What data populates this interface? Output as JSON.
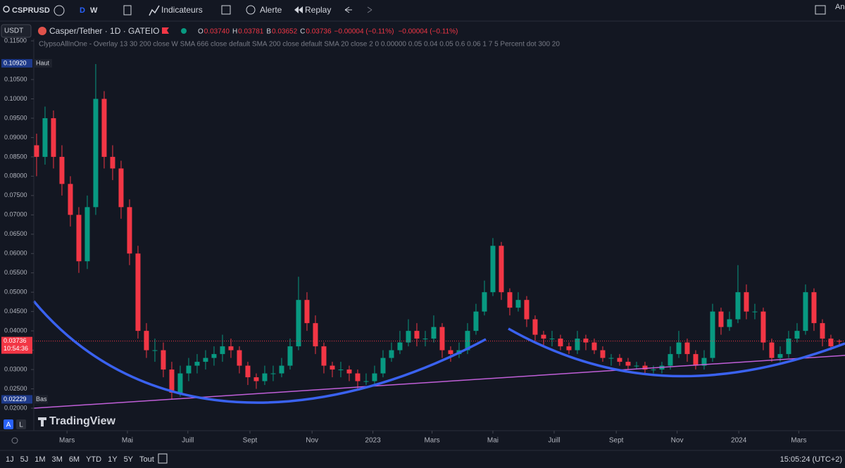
{
  "toolbar": {
    "symbol": "CSPRUSD",
    "intervals": [
      "D",
      "W"
    ],
    "indicators": "Indicateurs",
    "alert": "Alerte",
    "replay": "Replay",
    "account": "An"
  },
  "legend": {
    "currency": "USDT",
    "title": "Casper/Tether · 1D · GATEIO",
    "ohlc": [
      {
        "key": "O",
        "value": "0.03740"
      },
      {
        "key": "H",
        "value": "0.03781"
      },
      {
        "key": "B",
        "value": "0.03652"
      },
      {
        "key": "C",
        "value": "0.03736"
      }
    ],
    "change": "−0.00004 (−0.11%)",
    "change2": "−0.00004 (−0.11%)",
    "indicator": "ClypsoAllInOne - Overlay 13 30 200 close W SMA 666 close default SMA 200 close default SMA 20 close 2 0 0.00000 0.05 0.04 0.05 0.6 0.06 1 7 5 Percent dot 300 20"
  },
  "chart_data": {
    "type": "candlestick",
    "categories": [
      null,
      null,
      null,
      null,
      null,
      null,
      null,
      null,
      null,
      null,
      null,
      null,
      null,
      null,
      null,
      null,
      null,
      null,
      null,
      null,
      null,
      null,
      null,
      null,
      null,
      null,
      null,
      null,
      null,
      null,
      null,
      null,
      null,
      null,
      null,
      null,
      null,
      null,
      null,
      null,
      null,
      null,
      null,
      null,
      null,
      null,
      null,
      null,
      null,
      null,
      null,
      null,
      null,
      null,
      null,
      null,
      null,
      null,
      null,
      null,
      null,
      null,
      null,
      null,
      null,
      null,
      null,
      null,
      null,
      null,
      null,
      null,
      null,
      null,
      null,
      null,
      null,
      null,
      null,
      null,
      null,
      null,
      null,
      null,
      null,
      null,
      null,
      null,
      null,
      null,
      null,
      null,
      null,
      null,
      null,
      null
    ],
    "open": [
      0.088,
      0.085,
      0.095,
      0.085,
      0.078,
      0.07,
      0.058,
      0.072,
      0.1,
      0.085,
      0.082,
      0.072,
      0.06,
      0.04,
      0.035,
      0.035,
      0.03,
      0.024,
      0.029,
      0.031,
      0.032,
      0.033,
      0.034,
      0.036,
      0.035,
      0.031,
      0.028,
      0.027,
      0.029,
      0.029,
      0.031,
      0.036,
      0.048,
      0.042,
      0.036,
      0.031,
      0.03,
      0.03,
      0.029,
      0.027,
      0.027,
      0.029,
      0.033,
      0.035,
      0.037,
      0.04,
      0.038,
      0.038,
      0.041,
      0.035,
      0.034,
      0.035,
      0.04,
      0.045,
      0.05,
      0.062,
      0.05,
      0.046,
      0.048,
      0.043,
      0.039,
      0.038,
      0.038,
      0.036,
      0.035,
      0.038,
      0.037,
      0.035,
      0.033,
      0.033,
      0.032,
      0.031,
      0.031,
      0.03,
      0.03,
      0.031,
      0.034,
      0.037,
      0.034,
      0.031,
      0.033,
      0.045,
      0.041,
      0.043,
      0.05,
      0.045,
      0.045,
      0.037,
      0.033,
      0.034,
      0.038,
      0.04,
      0.05,
      0.042,
      0.038,
      0.0374
    ],
    "high": [
      0.091,
      0.098,
      0.097,
      0.088,
      0.08,
      0.072,
      0.075,
      0.109,
      0.102,
      0.088,
      0.084,
      0.074,
      0.062,
      0.042,
      0.038,
      0.037,
      0.032,
      0.031,
      0.033,
      0.034,
      0.035,
      0.036,
      0.039,
      0.038,
      0.036,
      0.032,
      0.029,
      0.031,
      0.031,
      0.033,
      0.038,
      0.054,
      0.05,
      0.044,
      0.037,
      0.032,
      0.032,
      0.031,
      0.03,
      0.029,
      0.031,
      0.035,
      0.037,
      0.04,
      0.043,
      0.042,
      0.04,
      0.044,
      0.042,
      0.036,
      0.037,
      0.042,
      0.047,
      0.053,
      0.064,
      0.063,
      0.051,
      0.05,
      0.049,
      0.044,
      0.04,
      0.04,
      0.039,
      0.037,
      0.04,
      0.039,
      0.038,
      0.036,
      0.034,
      0.034,
      0.033,
      0.032,
      0.032,
      0.031,
      0.032,
      0.036,
      0.04,
      0.038,
      0.035,
      0.035,
      0.047,
      0.046,
      0.045,
      0.057,
      0.052,
      0.047,
      0.046,
      0.038,
      0.036,
      0.04,
      0.042,
      0.052,
      0.051,
      0.043,
      0.039,
      0.03781
    ],
    "low": [
      0.08,
      0.083,
      0.082,
      0.075,
      0.067,
      0.055,
      0.056,
      0.07,
      0.082,
      0.079,
      0.069,
      0.057,
      0.038,
      0.033,
      0.032,
      0.028,
      0.0223,
      0.023,
      0.027,
      0.029,
      0.03,
      0.031,
      0.032,
      0.033,
      0.029,
      0.026,
      0.025,
      0.026,
      0.027,
      0.028,
      0.03,
      0.035,
      0.04,
      0.034,
      0.029,
      0.028,
      0.028,
      0.027,
      0.025,
      0.026,
      0.026,
      0.028,
      0.032,
      0.034,
      0.036,
      0.036,
      0.036,
      0.037,
      0.033,
      0.032,
      0.033,
      0.034,
      0.039,
      0.044,
      0.049,
      0.048,
      0.044,
      0.045,
      0.041,
      0.037,
      0.036,
      0.036,
      0.035,
      0.034,
      0.034,
      0.035,
      0.034,
      0.032,
      0.031,
      0.031,
      0.03,
      0.03,
      0.029,
      0.029,
      0.029,
      0.03,
      0.033,
      0.032,
      0.03,
      0.03,
      0.032,
      0.039,
      0.04,
      0.042,
      0.043,
      0.043,
      0.035,
      0.032,
      0.032,
      0.033,
      0.037,
      0.039,
      0.04,
      0.036,
      0.035,
      0.03652
    ],
    "close": [
      0.085,
      0.095,
      0.085,
      0.078,
      0.07,
      0.058,
      0.072,
      0.1,
      0.085,
      0.082,
      0.072,
      0.06,
      0.04,
      0.035,
      0.035,
      0.03,
      0.024,
      0.029,
      0.031,
      0.032,
      0.033,
      0.034,
      0.036,
      0.035,
      0.031,
      0.028,
      0.027,
      0.029,
      0.029,
      0.031,
      0.036,
      0.048,
      0.042,
      0.036,
      0.031,
      0.03,
      0.03,
      0.029,
      0.027,
      0.027,
      0.029,
      0.033,
      0.035,
      0.037,
      0.04,
      0.038,
      0.038,
      0.041,
      0.035,
      0.034,
      0.035,
      0.04,
      0.045,
      0.05,
      0.062,
      0.05,
      0.046,
      0.048,
      0.043,
      0.039,
      0.038,
      0.038,
      0.036,
      0.035,
      0.038,
      0.037,
      0.035,
      0.033,
      0.033,
      0.032,
      0.031,
      0.031,
      0.03,
      0.03,
      0.031,
      0.034,
      0.037,
      0.034,
      0.031,
      0.033,
      0.045,
      0.041,
      0.043,
      0.05,
      0.045,
      0.045,
      0.037,
      0.033,
      0.034,
      0.038,
      0.04,
      0.05,
      0.042,
      0.038,
      0.036,
      0.03736
    ],
    "up_color": "#089981",
    "down_color": "#f23645",
    "xlim": [
      -0.33,
      95.67
    ],
    "xticks": [
      {
        "value": 3.6,
        "label": "Mars"
      },
      {
        "value": 10.75,
        "label": "Mai"
      },
      {
        "value": 17.9,
        "label": "Juill"
      },
      {
        "value": 25.25,
        "label": "Sept"
      },
      {
        "value": 32.6,
        "label": "Nov"
      },
      {
        "value": 39.8,
        "label": "2023"
      },
      {
        "value": 46.8,
        "label": "Mars"
      },
      {
        "value": 54,
        "label": "Mai"
      },
      {
        "value": 61.25,
        "label": "Juill"
      },
      {
        "value": 68.6,
        "label": "Sept"
      },
      {
        "value": 75.8,
        "label": "Nov"
      },
      {
        "value": 83.1,
        "label": "2024"
      },
      {
        "value": 90.2,
        "label": "Mars"
      }
    ],
    "ylim": [
      0.01418,
      0.11556
    ],
    "yticks": [
      {
        "value": 0.02,
        "label": "0.02000"
      },
      {
        "value": 0.025,
        "label": "0.02500"
      },
      {
        "value": 0.03,
        "label": "0.03000"
      },
      {
        "value": 0.035,
        "label": "0.03500"
      },
      {
        "value": 0.04,
        "label": "0.04000"
      },
      {
        "value": 0.045,
        "label": "0.04500"
      },
      {
        "value": 0.05,
        "label": "0.05000"
      },
      {
        "value": 0.055,
        "label": "0.05500"
      },
      {
        "value": 0.06,
        "label": "0.06000"
      },
      {
        "value": 0.065,
        "label": "0.06500"
      },
      {
        "value": 0.07,
        "label": "0.07000"
      },
      {
        "value": 0.075,
        "label": "0.07500"
      },
      {
        "value": 0.08,
        "label": "0.08000"
      },
      {
        "value": 0.085,
        "label": "0.08500"
      },
      {
        "value": 0.09,
        "label": "0.09000"
      },
      {
        "value": 0.095,
        "label": "0.09500"
      },
      {
        "value": 0.1,
        "label": "0.10000"
      },
      {
        "value": 0.105,
        "label": "0.10500"
      },
      {
        "value": 0.115,
        "label": "0.11500"
      }
    ],
    "markers": {
      "high": {
        "value": 0.1092,
        "label": "0.10920",
        "tag": "Haut"
      },
      "last": {
        "value": 0.03736,
        "label": "0.03736",
        "countdown": "10:54:36"
      },
      "low": {
        "value": 0.02229,
        "label": "0.02229",
        "tag": "Bas"
      }
    },
    "grid": false
  },
  "watermark": "TradingView",
  "scale_buttons": [
    "A",
    "L"
  ],
  "footer": {
    "ranges": [
      "1J",
      "5J",
      "1M",
      "3M",
      "6M",
      "YTD",
      "1Y",
      "5Y",
      "Tout"
    ],
    "clock": "15:05:24 (UTC+2)"
  }
}
